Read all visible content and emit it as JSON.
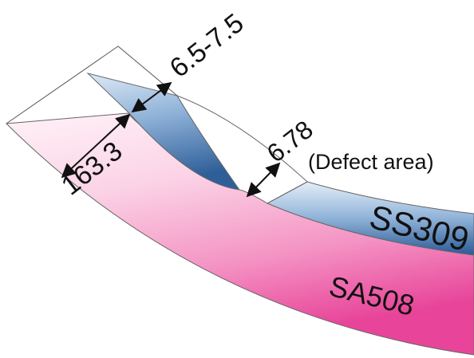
{
  "dimensions": {
    "base_thickness": "163.3",
    "clad_thickness": "6.5-7.5",
    "defect_thickness": "6.78",
    "defect_note": "(Defect area)"
  },
  "materials": {
    "cladding": "SS309",
    "base": "SA508"
  },
  "colors": {
    "base_light": "#fde8f2",
    "base_dark": "#e8459a",
    "clad_light": "#dce8f4",
    "clad_dark": "#2f5f99",
    "clad_label": "#1a1a1a",
    "base_label": "#111111",
    "outline": "#555555",
    "arrow": "#111111"
  }
}
